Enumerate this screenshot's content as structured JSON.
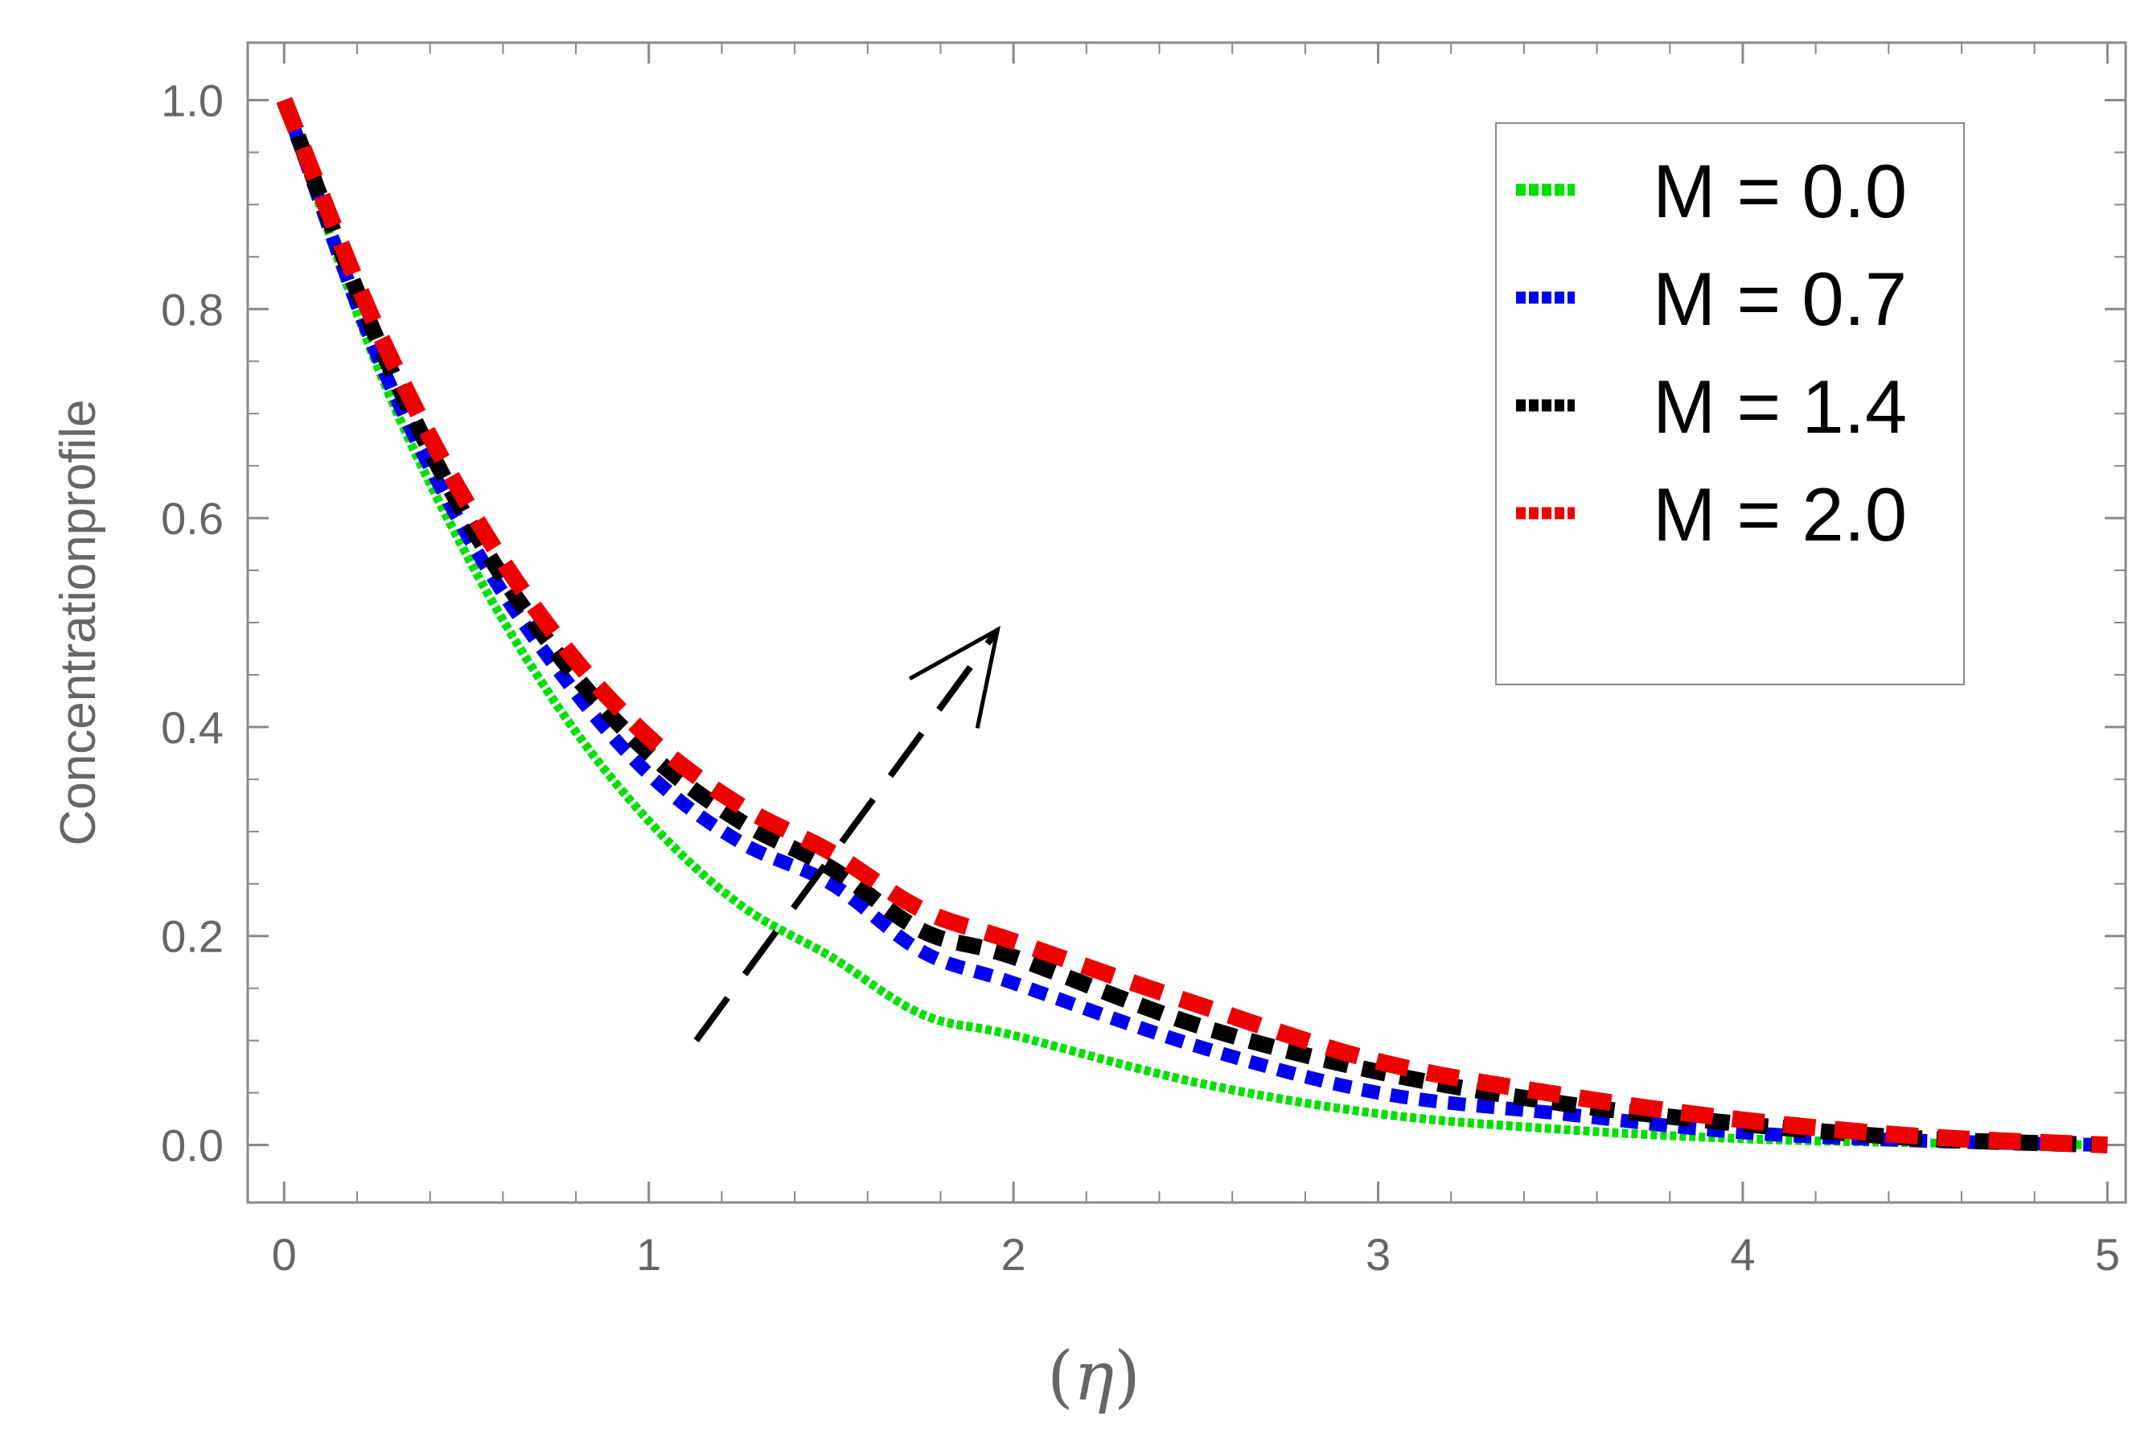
{
  "chart_data": {
    "type": "line",
    "title": "",
    "xlabel": "(η)",
    "xlabel_parts": {
      "open": "(",
      "var": "η",
      "close": ")"
    },
    "ylabel": "Concentrationprofile",
    "xlim": [
      -0.1,
      5.05
    ],
    "ylim": [
      -0.055,
      1.055
    ],
    "xticks": [
      0,
      1,
      2,
      3,
      4,
      5
    ],
    "xtick_labels": [
      "0",
      "1",
      "2",
      "3",
      "4",
      "5"
    ],
    "yticks": [
      0.0,
      0.2,
      0.4,
      0.6,
      0.8,
      1.0
    ],
    "ytick_labels": [
      "0.0",
      "0.2",
      "0.4",
      "0.6",
      "0.8",
      "1.0"
    ],
    "grid": false,
    "legend_position": "top-right",
    "series": [
      {
        "name": "M = 0.0",
        "color": "#00e000",
        "style": "dotted",
        "x": [
          0,
          0.25,
          0.5,
          0.75,
          1.0,
          1.25,
          1.5,
          1.75,
          2.0,
          2.5,
          3.0,
          3.5,
          4.0,
          4.5,
          5.0
        ],
        "y": [
          1.0,
          0.75,
          0.565,
          0.42,
          0.31,
          0.23,
          0.18,
          0.125,
          0.105,
          0.06,
          0.03,
          0.015,
          0.006,
          0.002,
          0.0
        ]
      },
      {
        "name": "M = 0.7",
        "color": "#0000ee",
        "style": "dotted",
        "x": [
          0,
          0.25,
          0.5,
          0.75,
          1.0,
          1.25,
          1.5,
          1.75,
          2.0,
          2.5,
          3.0,
          3.5,
          4.0,
          4.5,
          5.0
        ],
        "y": [
          1.0,
          0.76,
          0.585,
          0.455,
          0.355,
          0.29,
          0.25,
          0.185,
          0.155,
          0.095,
          0.05,
          0.03,
          0.012,
          0.004,
          0.0
        ]
      },
      {
        "name": "M = 1.4",
        "color": "#000000",
        "style": "dashed",
        "x": [
          0,
          0.25,
          0.5,
          0.75,
          1.0,
          1.25,
          1.5,
          1.75,
          2.0,
          2.5,
          3.0,
          3.5,
          4.0,
          4.5,
          5.0
        ],
        "y": [
          1.0,
          0.775,
          0.6,
          0.47,
          0.375,
          0.31,
          0.265,
          0.205,
          0.18,
          0.115,
          0.07,
          0.04,
          0.02,
          0.006,
          0.0
        ]
      },
      {
        "name": "M = 2.0",
        "color": "#ee0000",
        "style": "dashed",
        "x": [
          0,
          0.25,
          0.5,
          0.75,
          1.0,
          1.25,
          1.5,
          1.75,
          2.0,
          2.5,
          3.0,
          3.5,
          4.0,
          4.5,
          5.0
        ],
        "y": [
          1.0,
          0.785,
          0.615,
          0.485,
          0.39,
          0.325,
          0.28,
          0.225,
          0.195,
          0.135,
          0.08,
          0.048,
          0.024,
          0.008,
          0.0
        ]
      }
    ],
    "annotations": [
      {
        "type": "arrow",
        "style": "dashed",
        "color": "#000000",
        "from": [
          1.13,
          0.1
        ],
        "to": [
          1.95,
          0.49
        ],
        "meaning": "increasing M"
      }
    ]
  }
}
